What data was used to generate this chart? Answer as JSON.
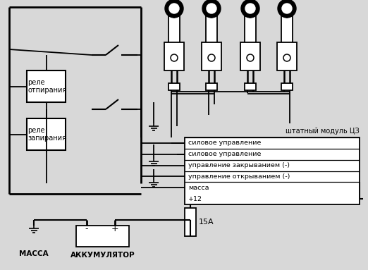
{
  "bg_color": "#d8d8d8",
  "relay1_label": "реле\nотпирания",
  "relay2_label": "реле\nзапирания",
  "module_label": "штатный модуль ЦЗ",
  "rows": [
    "силовое управление",
    "силовое управление",
    "управление закрыванием (-)",
    "управление открыванием (-)",
    "масса",
    "+12"
  ],
  "fuse_label": "15A",
  "massa_label": "МАССА",
  "akk_label": "АККУМУЛЯТОР"
}
